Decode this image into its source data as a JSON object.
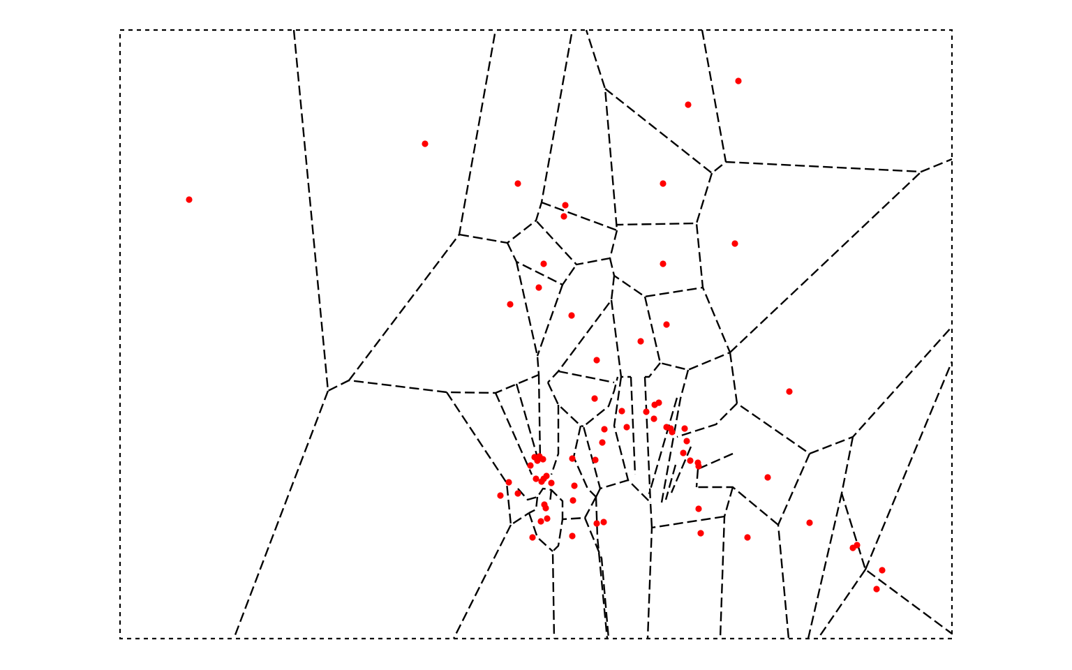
{
  "diagram": {
    "kind": "voronoi-tessellation",
    "edge_style": "dashed",
    "colors": {
      "background": "#ffffff",
      "edge": "#000000",
      "site": "#ff0000"
    },
    "site_count": 86
  }
}
